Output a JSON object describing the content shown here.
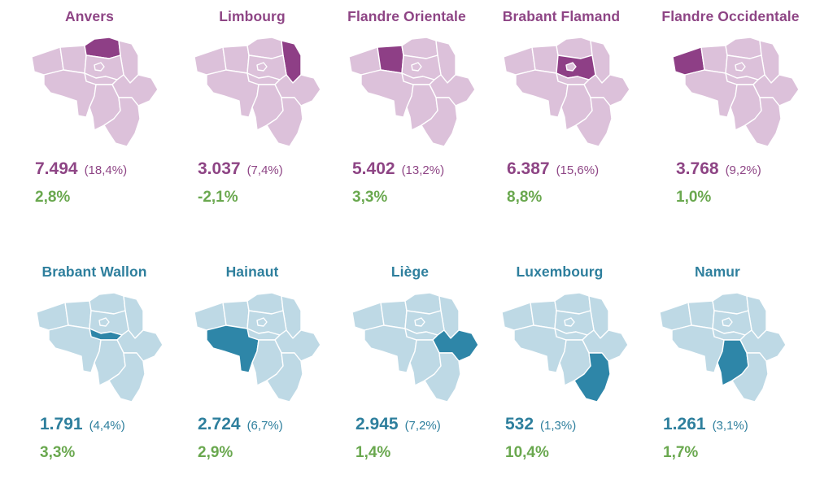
{
  "colors": {
    "flanders_text": "#8e4585",
    "flanders_map_light": "#dcc1da",
    "flanders_map_highlight": "#8e3f86",
    "wallonia_text": "#2e7f9d",
    "wallonia_map_light": "#bed9e5",
    "wallonia_map_highlight": "#2e86a8",
    "change_text": "#6aa84f"
  },
  "provinces": [
    {
      "name": "Anvers",
      "value": "7.494",
      "share": "(18,4%)",
      "change": "2,8%"
    },
    {
      "name": "Limbourg",
      "value": "3.037",
      "share": "(7,4%)",
      "change": "-2,1%"
    },
    {
      "name": "Flandre Orientale",
      "value": "5.402",
      "share": "(13,2%)",
      "change": "3,3%"
    },
    {
      "name": "Brabant Flamand",
      "value": "6.387",
      "share": "(15,6%)",
      "change": "8,8%"
    },
    {
      "name": "Flandre Occidentale",
      "value": "3.768",
      "share": "(9,2%)",
      "change": "1,0%"
    },
    {
      "name": "Brabant Wallon",
      "value": "1.791",
      "share": "(4,4%)",
      "change": "3,3%"
    },
    {
      "name": "Hainaut",
      "value": "2.724",
      "share": "(6,7%)",
      "change": "2,9%"
    },
    {
      "name": "Liège",
      "value": "2.945",
      "share": "(7,2%)",
      "change": "1,4%"
    },
    {
      "name": "Luxembourg",
      "value": "532",
      "share": "(1,3%)",
      "change": "10,4%"
    },
    {
      "name": "Namur",
      "value": "1.261",
      "share": "(3,1%)",
      "change": "1,7%"
    }
  ]
}
